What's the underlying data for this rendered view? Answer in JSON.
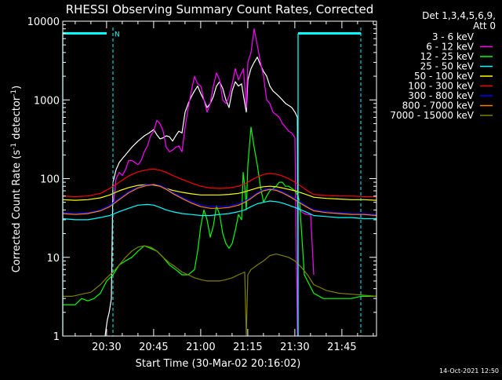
{
  "chart_data": {
    "type": "line",
    "title": "RHESSI Observing Summary Count Rates, Corrected",
    "xlabel": "Start Time (30-Mar-02 20:16:02)",
    "ylabel": "Corrected Count Rate (s",
    "ylabel_exp": "-1",
    "ylabel_mid": " detector",
    "ylabel_tail": ")",
    "x_unit": "minutes after 20:16:02",
    "xlim": [
      0,
      100
    ],
    "ylim": [
      1,
      10000
    ],
    "yscale": "log",
    "xticks": [
      {
        "value": 13.97,
        "label": "20:30"
      },
      {
        "value": 28.97,
        "label": "20:45"
      },
      {
        "value": 43.97,
        "label": "21:00"
      },
      {
        "value": 58.97,
        "label": "21:15"
      },
      {
        "value": 73.97,
        "label": "21:30"
      },
      {
        "value": 88.97,
        "label": "21:45"
      }
    ],
    "yticks": [
      {
        "value": 1,
        "label": "1"
      },
      {
        "value": 10,
        "label": "10"
      },
      {
        "value": 100,
        "label": "100"
      },
      {
        "value": 1000,
        "label": "1000"
      },
      {
        "value": 10000,
        "label": "10000"
      }
    ],
    "legend": {
      "position": "top-right",
      "header1": "Det 1,3,4,5,6,9,",
      "header2": "Att 0"
    },
    "annotations": [
      {
        "text": "N",
        "x": 16.5,
        "y": 7000,
        "color": "#00ffff"
      }
    ],
    "markers": {
      "color": "#00ffff",
      "boundaries": [
        0,
        16,
        75,
        95
      ],
      "gap_levels": [
        7000,
        7000
      ]
    },
    "series": [
      {
        "name": "3 - 6 keV",
        "color": "#ffffff",
        "legend_color": "#000000",
        "x": [
          0,
          12.5,
          13.5,
          14.2,
          14.8,
          15.5,
          16,
          17,
          18,
          19,
          20,
          22,
          24,
          26,
          27.5,
          29,
          30,
          31,
          32,
          33,
          34,
          35,
          36,
          37,
          38,
          39,
          40,
          41,
          42,
          43,
          44,
          45,
          46,
          47,
          48,
          49,
          50,
          51,
          52,
          53,
          54,
          55,
          56,
          57,
          57.5,
          58.5,
          59,
          60,
          61,
          62,
          63,
          64,
          65,
          66,
          67,
          68,
          69,
          70,
          71,
          72,
          73,
          74,
          74.8,
          75,
          75.8
        ],
        "y": [
          null,
          null,
          1,
          1.6,
          2,
          3,
          90,
          130,
          160,
          180,
          200,
          250,
          300,
          350,
          380,
          420,
          360,
          320,
          330,
          350,
          340,
          300,
          350,
          400,
          380,
          700,
          900,
          1100,
          1300,
          1500,
          1200,
          1000,
          800,
          900,
          1100,
          1500,
          1700,
          1400,
          1000,
          800,
          1300,
          1700,
          1500,
          1600,
          1200,
          700,
          1800,
          2500,
          3000,
          3500,
          2800,
          2300,
          2000,
          1500,
          1300,
          1200,
          1100,
          1000,
          900,
          850,
          800,
          700,
          600,
          1,
          null
        ]
      },
      {
        "name": "6 - 12 keV",
        "color": "#ff00ff",
        "x": [
          0,
          15.5,
          16.2,
          17,
          18,
          19,
          20,
          21,
          22,
          24,
          25,
          26,
          27,
          28,
          29,
          30,
          31,
          32,
          33,
          34,
          35,
          36,
          37,
          38,
          39,
          40,
          41,
          42,
          43,
          44,
          45,
          46,
          47,
          48,
          49,
          50,
          51,
          52,
          53,
          54,
          55,
          56,
          57,
          57.6,
          58.5,
          59,
          60,
          61,
          62,
          63,
          64,
          65,
          66,
          67,
          68,
          69,
          70,
          71,
          72,
          73,
          74,
          74.8,
          75,
          75.5,
          76,
          77,
          78,
          79,
          80,
          80.5
        ],
        "y": [
          null,
          null,
          50,
          100,
          120,
          110,
          130,
          170,
          170,
          150,
          170,
          220,
          260,
          350,
          400,
          550,
          500,
          400,
          250,
          220,
          230,
          250,
          260,
          220,
          450,
          800,
          1300,
          2000,
          1600,
          1500,
          1000,
          700,
          900,
          1500,
          2200,
          1800,
          1000,
          900,
          1100,
          1600,
          2500,
          1800,
          2200,
          2500,
          800,
          3000,
          4000,
          8000,
          5000,
          3000,
          2000,
          1000,
          900,
          700,
          650,
          600,
          500,
          450,
          400,
          380,
          330,
          1,
          45,
          40,
          38,
          36,
          35,
          35,
          6,
          null
        ]
      },
      {
        "name": "12 - 25 keV",
        "color": "#00ff00",
        "x": [
          0,
          2,
          4,
          6,
          8,
          10,
          12,
          14,
          16,
          18,
          20,
          22,
          24,
          26,
          28,
          30,
          32,
          34,
          36,
          38,
          40,
          42,
          43,
          44,
          45,
          46,
          47,
          48,
          49,
          50,
          51,
          52,
          53,
          54,
          55,
          56,
          57,
          57.5,
          58,
          58.5,
          59,
          60,
          61,
          62,
          63,
          64,
          65,
          66,
          67,
          68,
          69,
          70,
          71,
          72,
          73,
          74,
          75,
          75.5,
          77,
          80,
          83,
          86,
          89,
          92,
          95,
          98,
          100
        ],
        "y": [
          2.5,
          2.5,
          2.5,
          3,
          2.8,
          3,
          3.5,
          5,
          6,
          8,
          9,
          10,
          12,
          14,
          13,
          12,
          10,
          8,
          7,
          6,
          6,
          7,
          12,
          25,
          40,
          30,
          18,
          25,
          45,
          35,
          20,
          15,
          13,
          15,
          22,
          35,
          30,
          120,
          80,
          40,
          150,
          450,
          250,
          150,
          80,
          50,
          60,
          70,
          75,
          80,
          90,
          90,
          80,
          80,
          75,
          70,
          60,
          50,
          6,
          3.5,
          3,
          3,
          3,
          3,
          3.2,
          3.2,
          3.2
        ]
      },
      {
        "name": "25 - 50 keV",
        "color": "#00ffff",
        "x": [
          0,
          4,
          8,
          12,
          15,
          18,
          21,
          24,
          27,
          29,
          31,
          33,
          35,
          38,
          41,
          44,
          47,
          50,
          53,
          56,
          58,
          60,
          62,
          64,
          66,
          68,
          70,
          72,
          74,
          76,
          78,
          80,
          84,
          88,
          92,
          96,
          100
        ],
        "y": [
          31,
          30,
          30,
          32,
          34,
          38,
          42,
          46,
          47,
          46,
          43,
          40,
          38,
          36,
          35,
          34,
          34,
          35,
          36,
          38,
          40,
          44,
          48,
          50,
          52,
          51,
          49,
          46,
          43,
          40,
          37,
          34,
          33,
          32,
          32,
          31,
          31
        ]
      },
      {
        "name": "50 - 100 keV",
        "color": "#ffff00",
        "x": [
          0,
          4,
          8,
          12,
          15,
          18,
          21,
          24,
          27,
          29,
          31,
          33,
          35,
          38,
          41,
          44,
          47,
          50,
          53,
          56,
          58,
          60,
          62,
          64,
          66,
          68,
          70,
          72,
          74,
          76,
          78,
          80,
          84,
          88,
          92,
          96,
          100
        ],
        "y": [
          54,
          53,
          54,
          57,
          62,
          70,
          77,
          82,
          84,
          83,
          80,
          75,
          71,
          67,
          64,
          62,
          62,
          62,
          63,
          65,
          68,
          72,
          76,
          79,
          80,
          79,
          76,
          73,
          70,
          66,
          62,
          58,
          56,
          55,
          54,
          54,
          53
        ]
      },
      {
        "name": "100 - 300 keV",
        "color": "#ff0000",
        "x": [
          0,
          4,
          8,
          12,
          15,
          18,
          21,
          24,
          27,
          29,
          31,
          33,
          35,
          38,
          41,
          44,
          47,
          50,
          53,
          56,
          58,
          60,
          62,
          64,
          66,
          68,
          70,
          72,
          74,
          76,
          78,
          80,
          84,
          88,
          92,
          96,
          100
        ],
        "y": [
          60,
          59,
          60,
          65,
          75,
          90,
          108,
          122,
          130,
          132,
          128,
          120,
          110,
          98,
          88,
          80,
          76,
          75,
          76,
          80,
          86,
          95,
          105,
          113,
          116,
          114,
          108,
          100,
          90,
          80,
          70,
          63,
          61,
          60,
          60,
          59,
          59
        ]
      },
      {
        "name": "300 - 800 keV",
        "color": "#0000ff",
        "x": [
          0,
          4,
          8,
          12,
          15,
          18,
          21,
          24,
          27,
          29,
          31,
          33,
          35,
          38,
          41,
          44,
          47,
          50,
          53,
          56,
          58,
          60,
          62,
          64,
          66,
          68,
          70,
          72,
          74,
          76,
          78,
          80,
          84,
          88,
          92,
          96,
          100
        ],
        "y": [
          37,
          36,
          37,
          40,
          46,
          56,
          68,
          78,
          84,
          85,
          82,
          75,
          67,
          58,
          51,
          46,
          44,
          44,
          45,
          48,
          52,
          58,
          66,
          72,
          75,
          73,
          68,
          62,
          56,
          50,
          44,
          40,
          38,
          37,
          36,
          36,
          35
        ]
      },
      {
        "name": "800 - 7000 keV",
        "color": "#ff8000",
        "x": [
          0,
          4,
          8,
          12,
          15,
          18,
          21,
          24,
          27,
          29,
          31,
          33,
          35,
          38,
          41,
          44,
          47,
          50,
          53,
          56,
          58,
          60,
          62,
          64,
          66,
          68,
          70,
          72,
          74,
          76,
          78,
          80,
          84,
          88,
          92,
          96,
          100
        ],
        "y": [
          36,
          35,
          36,
          39,
          44,
          54,
          66,
          76,
          82,
          84,
          80,
          73,
          65,
          56,
          49,
          44,
          42,
          42,
          43,
          46,
          50,
          56,
          64,
          70,
          73,
          71,
          66,
          60,
          54,
          48,
          43,
          39,
          37,
          36,
          35,
          35,
          34
        ]
      },
      {
        "name": "7000 - 15000 keV",
        "color": "#808000",
        "x": [
          0,
          3,
          6,
          9,
          12,
          14,
          16,
          18,
          20,
          22,
          24,
          26,
          28,
          30,
          32,
          34,
          36,
          38,
          40,
          42,
          44,
          46,
          48,
          50,
          52,
          54,
          56,
          58,
          58.5,
          59,
          60,
          62,
          64,
          66,
          68,
          70,
          72,
          74,
          76,
          78,
          80,
          84,
          88,
          92,
          96,
          100
        ],
        "y": [
          3.2,
          3.2,
          3.4,
          3.6,
          4.5,
          5.5,
          6.5,
          8,
          10,
          12,
          13.5,
          14,
          13.5,
          12,
          10,
          8.5,
          7.5,
          6.5,
          6,
          5.5,
          5.2,
          5,
          5,
          5,
          5.2,
          5.5,
          6,
          6.5,
          1,
          6,
          7,
          8,
          9,
          10.5,
          11,
          10.5,
          10,
          9,
          7.5,
          6,
          4.5,
          3.8,
          3.5,
          3.4,
          3.3,
          3.2
        ]
      }
    ]
  },
  "footer": {
    "date_stamp": "14-Oct-2021 12:50"
  }
}
